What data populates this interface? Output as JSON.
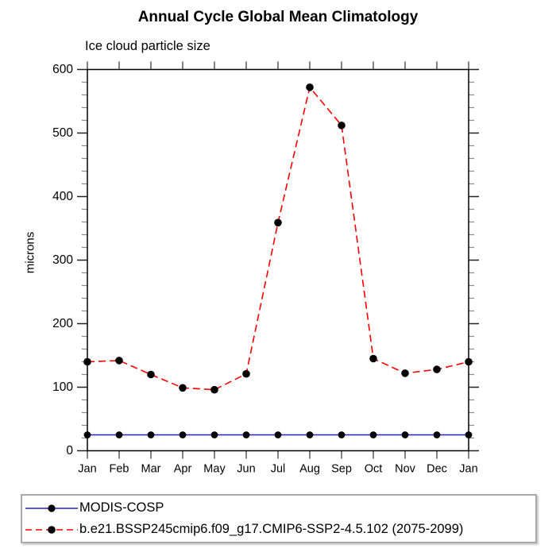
{
  "page": {
    "background": "#ffffff"
  },
  "chart_data": {
    "type": "line",
    "title": "Annual Cycle Global Mean Climatology",
    "subtitle": "Ice cloud particle size",
    "xlabel": "",
    "ylabel": "microns",
    "categories": [
      "Jan",
      "Feb",
      "Mar",
      "Apr",
      "May",
      "Jun",
      "Jul",
      "Aug",
      "Sep",
      "Oct",
      "Nov",
      "Dec",
      "Jan"
    ],
    "ylim": [
      0,
      600
    ],
    "ytick_major": 100,
    "ytick_minor": 20,
    "ytick_labels": [
      "0",
      "100",
      "200",
      "300",
      "400",
      "500",
      "600"
    ],
    "grid": false,
    "legend_position": "bottom",
    "frame_color": "#000000",
    "series": [
      {
        "name": "MODIS-COSP",
        "color": "#2222cc",
        "line_style": "solid",
        "marker": "filled-circle",
        "marker_color": "#000000",
        "values": [
          25,
          25,
          25,
          25,
          25,
          25,
          25,
          25,
          25,
          25,
          25,
          25,
          25
        ]
      },
      {
        "name": "b.e21.BSSP245cmip6.f09_g17.CMIP6-SSP2-4.5.102 (2075-2099)",
        "color": "#ff0000",
        "line_style": "dashed",
        "marker": "filled-circle",
        "marker_color": "#000000",
        "values": [
          140,
          142,
          120,
          99,
          96,
          121,
          359,
          572,
          512,
          145,
          122,
          128,
          140
        ]
      }
    ]
  }
}
